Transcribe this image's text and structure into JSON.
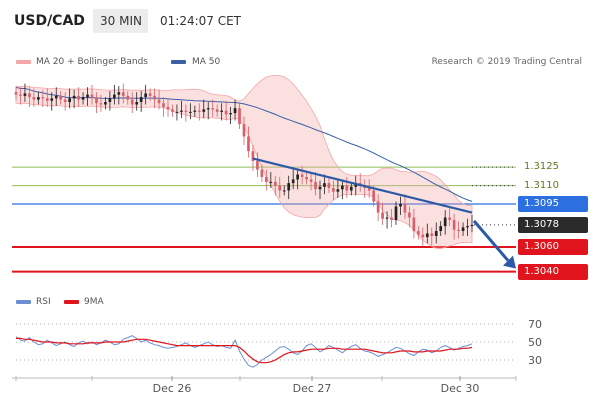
{
  "header": {
    "symbol": "USD/CAD",
    "timeframe": "30 MIN",
    "time": "01:24:07 CET"
  },
  "legend": {
    "bollinger": "MA 20 + Bollinger Bands",
    "ma50": "MA 50",
    "research": "Research © 2019 Trading Central"
  },
  "colors": {
    "candle_up": "#222222",
    "candle_down": "#d9606a",
    "bollinger": "#f4a7a7",
    "ma50": "#3c5fa8",
    "level_support": "#e0141c",
    "level_pivot": "#2c6fe0",
    "level_res": "#8cbf5a",
    "rsi": "#6d8fd6",
    "rsi_ma": "#e0141c",
    "arrow": "#2d5aa6"
  },
  "chart_data": [
    {
      "type": "candlestick",
      "x_ticks": [
        "Dec 26",
        "Dec 27",
        "Dec 30"
      ],
      "y_range": [
        1.3025,
        1.32
      ],
      "levels": [
        {
          "value": 1.3125,
          "label": "1.3125",
          "style": "resistance"
        },
        {
          "value": 1.311,
          "label": "1.3110",
          "style": "resistance"
        },
        {
          "value": 1.3095,
          "label": "1.3095",
          "style": "pivot"
        },
        {
          "value": 1.3078,
          "label": "1.3078",
          "style": "current"
        },
        {
          "value": 1.306,
          "label": "1.3060",
          "style": "support"
        },
        {
          "value": 1.304,
          "label": "1.3040",
          "style": "support"
        }
      ],
      "close_series": [
        1.3184,
        1.3183,
        1.3185,
        1.3182,
        1.318,
        1.3182,
        1.3181,
        1.3179,
        1.3181,
        1.3183,
        1.318,
        1.3178,
        1.3181,
        1.3183,
        1.318,
        1.3182,
        1.3184,
        1.3181,
        1.3177,
        1.3176,
        1.3178,
        1.3181,
        1.3184,
        1.3186,
        1.3183,
        1.318,
        1.3176,
        1.3178,
        1.3182,
        1.3185,
        1.3183,
        1.318,
        1.3177,
        1.3174,
        1.3172,
        1.317,
        1.317,
        1.3171,
        1.317,
        1.317,
        1.3171,
        1.317,
        1.3172,
        1.3173,
        1.3172,
        1.317,
        1.3171,
        1.3168,
        1.3169,
        1.3173,
        1.316,
        1.315,
        1.3138,
        1.313,
        1.3123,
        1.3117,
        1.3113,
        1.3113,
        1.311,
        1.3106,
        1.3106,
        1.3112,
        1.3115,
        1.3119,
        1.3117,
        1.3115,
        1.3113,
        1.3107,
        1.3109,
        1.3112,
        1.3108,
        1.3105,
        1.3107,
        1.311,
        1.3106,
        1.3109,
        1.3112,
        1.311,
        1.3108,
        1.3106,
        1.3097,
        1.3088,
        1.3083,
        1.3084,
        1.3082,
        1.3093,
        1.3095,
        1.3088,
        1.3084,
        1.3073,
        1.307,
        1.3068,
        1.3071,
        1.3069,
        1.3073,
        1.3077,
        1.3084,
        1.3082,
        1.3074,
        1.3073,
        1.3076,
        1.3077,
        1.3078
      ],
      "rsi": {
        "y_ticks": [
          70,
          50,
          30
        ],
        "legend_rsi": "RSI",
        "legend_ma": "9MA",
        "rsi_series": [
          56,
          52,
          51,
          55,
          50,
          47,
          48,
          52,
          49,
          46,
          48,
          50,
          47,
          45,
          49,
          51,
          48,
          50,
          47,
          49,
          52,
          50,
          47,
          48,
          53,
          55,
          57,
          54,
          50,
          52,
          49,
          47,
          46,
          44,
          43,
          44,
          45,
          47,
          49,
          46,
          44,
          46,
          48,
          50,
          47,
          45,
          46,
          44,
          43,
          52,
          40,
          31,
          24,
          22,
          25,
          30,
          33,
          36,
          40,
          44,
          45,
          42,
          38,
          36,
          40,
          46,
          48,
          44,
          39,
          42,
          46,
          44,
          41,
          38,
          42,
          45,
          47,
          43,
          40,
          39,
          37,
          34,
          36,
          38,
          41,
          44,
          43,
          40,
          37,
          35,
          39,
          42,
          41,
          38,
          40,
          44,
          46,
          44,
          41,
          43,
          45,
          46,
          48
        ],
        "ma_series": [
          54,
          54,
          53,
          53,
          52,
          51,
          50,
          50,
          50,
          49,
          49,
          49,
          48,
          48,
          48,
          48,
          49,
          49,
          49,
          49,
          50,
          50,
          50,
          50,
          50,
          51,
          52,
          53,
          53,
          53,
          52,
          51,
          50,
          49,
          48,
          47,
          46,
          46,
          46,
          46,
          46,
          46,
          46,
          46,
          46,
          46,
          46,
          46,
          46,
          46,
          44,
          40,
          35,
          31,
          28,
          27,
          27,
          28,
          30,
          33,
          36,
          38,
          39,
          39,
          40,
          41,
          42,
          42,
          42,
          42,
          43,
          43,
          43,
          42,
          42,
          42,
          42,
          42,
          42,
          41,
          40,
          39,
          38,
          38,
          38,
          39,
          40,
          40,
          40,
          39,
          39,
          39,
          40,
          40,
          40,
          40,
          41,
          42,
          42,
          42,
          43,
          43,
          44
        ]
      }
    }
  ]
}
